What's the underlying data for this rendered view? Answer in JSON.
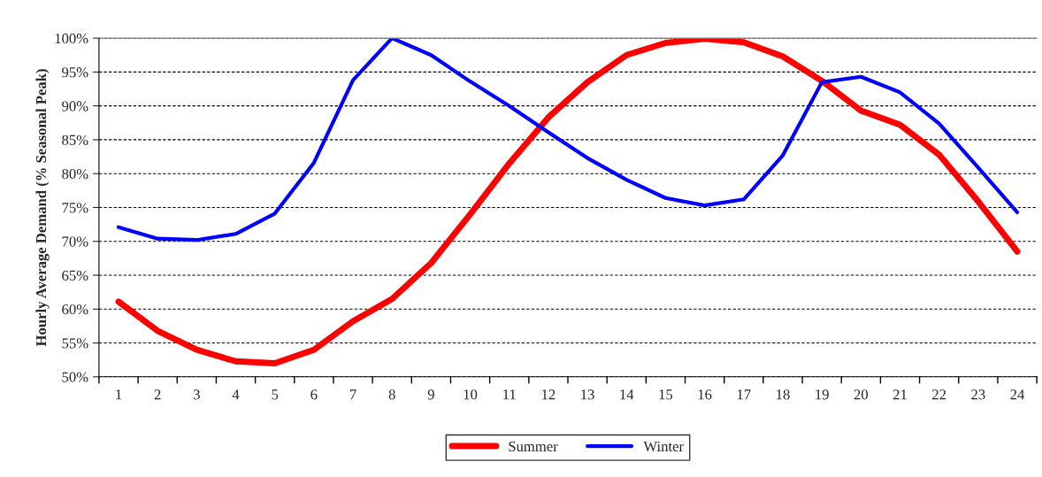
{
  "chart_data": {
    "type": "line",
    "ylabel": "Hourly Average Demand (% Seasonal Peak)",
    "categories": [
      "1",
      "2",
      "3",
      "4",
      "5",
      "6",
      "7",
      "8",
      "9",
      "10",
      "11",
      "12",
      "13",
      "14",
      "15",
      "16",
      "17",
      "18",
      "19",
      "20",
      "21",
      "22",
      "23",
      "24"
    ],
    "series": [
      {
        "name": "Summer",
        "color": "#ff0000",
        "values": [
          61.1,
          56.8,
          54.0,
          52.3,
          52.0,
          54.0,
          58.2,
          61.5,
          66.8,
          74.0,
          81.5,
          88.3,
          93.5,
          97.5,
          99.3,
          99.9,
          99.4,
          97.3,
          93.7,
          89.3,
          87.2,
          82.8,
          75.9,
          68.5
        ]
      },
      {
        "name": "Winter",
        "color": "#0000ff",
        "values": [
          72.1,
          70.4,
          70.2,
          71.1,
          74.1,
          81.6,
          93.8,
          100,
          97.5,
          93.6,
          90.0,
          86.1,
          82.3,
          79.1,
          76.4,
          75.3,
          76.2,
          82.7,
          93.5,
          94.3,
          92.0,
          87.4,
          80.9,
          74.3
        ]
      }
    ],
    "ylim": [
      50,
      100
    ],
    "yticks": [
      {
        "value": 50,
        "label": "50%"
      },
      {
        "value": 55,
        "label": "55%"
      },
      {
        "value": 60,
        "label": "60%"
      },
      {
        "value": 65,
        "label": "65%"
      },
      {
        "value": 70,
        "label": "70%"
      },
      {
        "value": 75,
        "label": "75%"
      },
      {
        "value": 80,
        "label": "80%"
      },
      {
        "value": 85,
        "label": "85%"
      },
      {
        "value": 90,
        "label": "90%"
      },
      {
        "value": 95,
        "label": "95%"
      },
      {
        "value": 100,
        "label": "100%"
      }
    ],
    "grid": "y",
    "legend": "bottom",
    "marker": "none",
    "line_style": "solid"
  }
}
